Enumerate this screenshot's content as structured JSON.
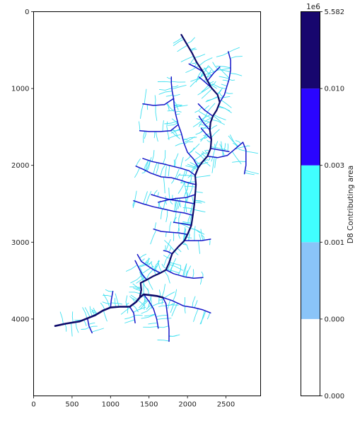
{
  "chart_data": [
    {
      "type": "heatmap",
      "description_of_marks": "flow-accumulation raster of a river network",
      "xlim": [
        0,
        2950
      ],
      "ylim": [
        5000,
        0
      ],
      "x_ticks": [
        0,
        500,
        1000,
        1500,
        2000,
        2500
      ],
      "y_ticks": [
        0,
        1000,
        2000,
        3000,
        4000
      ],
      "x_tick_labels": [
        "0",
        "500",
        "1000",
        "1500",
        "2000",
        "2500"
      ],
      "y_tick_labels": [
        "0",
        "1000",
        "2000",
        "3000",
        "4000"
      ],
      "grid": false,
      "network": {
        "colors": {
          "small": "#3fe0f0",
          "medium": "#1515c8",
          "large": "#0d0a6a"
        },
        "trunk": [
          [
            280,
            4090
          ],
          [
            420,
            4060
          ],
          [
            600,
            4030
          ],
          [
            700,
            3990
          ],
          [
            800,
            3950
          ],
          [
            900,
            3890
          ],
          [
            1000,
            3850
          ],
          [
            1120,
            3840
          ],
          [
            1250,
            3840
          ],
          [
            1330,
            3780
          ],
          [
            1380,
            3720
          ],
          [
            1430,
            3680
          ],
          [
            1520,
            3690
          ],
          [
            1600,
            3700
          ],
          [
            1680,
            3720
          ]
        ],
        "main_stem": [
          [
            1380,
            3720
          ],
          [
            1400,
            3620
          ],
          [
            1390,
            3530
          ],
          [
            1470,
            3490
          ],
          [
            1560,
            3440
          ],
          [
            1650,
            3400
          ],
          [
            1720,
            3360
          ],
          [
            1760,
            3270
          ],
          [
            1800,
            3150
          ],
          [
            1880,
            3060
          ],
          [
            1960,
            2980
          ],
          [
            2000,
            2900
          ],
          [
            2050,
            2780
          ],
          [
            2070,
            2650
          ],
          [
            2090,
            2500
          ],
          [
            2100,
            2380
          ],
          [
            2110,
            2250
          ],
          [
            2100,
            2130
          ],
          [
            2140,
            2030
          ],
          [
            2190,
            1960
          ],
          [
            2260,
            1880
          ],
          [
            2300,
            1780
          ],
          [
            2310,
            1660
          ],
          [
            2290,
            1540
          ],
          [
            2300,
            1440
          ],
          [
            2330,
            1360
          ],
          [
            2380,
            1280
          ],
          [
            2420,
            1180
          ],
          [
            2390,
            1080
          ],
          [
            2310,
            990
          ],
          [
            2260,
            900
          ],
          [
            2200,
            780
          ],
          [
            2120,
            660
          ],
          [
            2060,
            540
          ],
          [
            1990,
            420
          ],
          [
            1920,
            300
          ]
        ],
        "medium_channels": [
          [
            [
              2110,
              2250
            ],
            [
              2020,
              2230
            ],
            [
              1900,
              2190
            ],
            [
              1790,
              2160
            ],
            [
              1660,
              2150
            ],
            [
              1520,
              2100
            ],
            [
              1420,
              2050
            ],
            [
              1330,
              2010
            ]
          ],
          [
            [
              2100,
              2380
            ],
            [
              1980,
              2420
            ],
            [
              1860,
              2430
            ],
            [
              1740,
              2450
            ],
            [
              1620,
              2480
            ]
          ],
          [
            [
              2090,
              2500
            ],
            [
              1940,
              2470
            ],
            [
              1800,
              2450
            ],
            [
              1660,
              2420
            ],
            [
              1530,
              2380
            ]
          ],
          [
            [
              2070,
              2650
            ],
            [
              1960,
              2620
            ],
            [
              1830,
              2600
            ],
            [
              1700,
              2570
            ],
            [
              1560,
              2540
            ],
            [
              1420,
              2500
            ],
            [
              1300,
              2460
            ]
          ],
          [
            [
              2050,
              2780
            ],
            [
              1940,
              2760
            ],
            [
              1820,
              2740
            ]
          ],
          [
            [
              2140,
              2030
            ],
            [
              2080,
              1920
            ],
            [
              2000,
              1830
            ],
            [
              1950,
              1700
            ],
            [
              1920,
              1580
            ],
            [
              1880,
              1470
            ],
            [
              1850,
              1350
            ],
            [
              1830,
              1250
            ],
            [
              1820,
              1130
            ],
            [
              1800,
              1030
            ],
            [
              1790,
              930
            ],
            [
              1790,
              850
            ]
          ],
          [
            [
              1880,
              1470
            ],
            [
              1780,
              1550
            ],
            [
              1650,
              1560
            ],
            [
              1500,
              1560
            ],
            [
              1380,
              1550
            ]
          ],
          [
            [
              1820,
              1130
            ],
            [
              1700,
              1210
            ],
            [
              1560,
              1220
            ],
            [
              1420,
              1200
            ]
          ],
          [
            [
              2260,
              1880
            ],
            [
              2390,
              1900
            ],
            [
              2520,
              1870
            ],
            [
              2650,
              1760
            ],
            [
              2720,
              1700
            ],
            [
              2760,
              1800
            ],
            [
              2760,
              2000
            ],
            [
              2740,
              2110
            ]
          ],
          [
            [
              2300,
              1780
            ],
            [
              2420,
              1800
            ],
            [
              2540,
              1820
            ]
          ],
          [
            [
              1960,
              2980
            ],
            [
              2060,
              2980
            ],
            [
              2180,
              2980
            ],
            [
              2300,
              2960
            ]
          ],
          [
            [
              1800,
              3150
            ],
            [
              1740,
              3120
            ],
            [
              1690,
              3110
            ]
          ],
          [
            [
              1650,
              3400
            ],
            [
              1560,
              3360
            ],
            [
              1470,
              3300
            ],
            [
              1400,
              3250
            ],
            [
              1350,
              3160
            ]
          ],
          [
            [
              1470,
              3490
            ],
            [
              1410,
              3420
            ],
            [
              1360,
              3320
            ],
            [
              1320,
              3240
            ]
          ],
          [
            [
              1720,
              3360
            ],
            [
              1820,
              3410
            ],
            [
              1960,
              3450
            ],
            [
              2080,
              3470
            ],
            [
              2200,
              3460
            ]
          ],
          [
            [
              1680,
              3720
            ],
            [
              1720,
              3800
            ],
            [
              1740,
              3950
            ],
            [
              1760,
              4130
            ],
            [
              1760,
              4290
            ]
          ],
          [
            [
              1680,
              3720
            ],
            [
              1800,
              3760
            ],
            [
              1950,
              3830
            ],
            [
              2080,
              3850
            ],
            [
              2200,
              3880
            ],
            [
              2300,
              3920
            ]
          ],
          [
            [
              1430,
              3680
            ],
            [
              1500,
              3770
            ],
            [
              1560,
              3870
            ],
            [
              1600,
              4000
            ],
            [
              1620,
              4120
            ]
          ],
          [
            [
              1250,
              3840
            ],
            [
              1300,
              3920
            ],
            [
              1320,
              4050
            ]
          ],
          [
            [
              2310,
              1660
            ],
            [
              2240,
              1590
            ],
            [
              2180,
              1520
            ]
          ],
          [
            [
              2290,
              1540
            ],
            [
              2210,
              1450
            ],
            [
              2150,
              1360
            ]
          ],
          [
            [
              2330,
              1360
            ],
            [
              2220,
              1280
            ],
            [
              2140,
              1200
            ]
          ],
          [
            [
              2420,
              1180
            ],
            [
              2480,
              1080
            ],
            [
              2510,
              980
            ],
            [
              2540,
              880
            ],
            [
              2560,
              760
            ],
            [
              2560,
              630
            ],
            [
              2530,
              520
            ]
          ],
          [
            [
              2310,
              990
            ],
            [
              2220,
              910
            ],
            [
              2150,
              850
            ]
          ],
          [
            [
              2260,
              900
            ],
            [
              2340,
              800
            ],
            [
              2420,
              720
            ]
          ],
          [
            [
              2200,
              780
            ],
            [
              2100,
              720
            ],
            [
              2020,
              680
            ]
          ],
          [
            [
              2100,
              2130
            ],
            [
              2020,
              2070
            ],
            [
              1920,
              2040
            ],
            [
              1800,
              2010
            ],
            [
              1680,
              1980
            ],
            [
              1540,
              1950
            ],
            [
              1420,
              1910
            ]
          ],
          [
            [
              1000,
              3850
            ],
            [
              1010,
              3750
            ],
            [
              1030,
              3640
            ]
          ],
          [
            [
              700,
              3990
            ],
            [
              720,
              4090
            ],
            [
              760,
              4180
            ]
          ],
          [
            [
              2000,
              2900
            ],
            [
              1900,
              2880
            ],
            [
              1780,
              2870
            ],
            [
              1660,
              2860
            ],
            [
              1560,
              2830
            ]
          ]
        ]
      }
    },
    {
      "type": "colorbar",
      "label": "D8 Contributing area",
      "offset_label": "1e6",
      "tick_labels": [
        "0.000",
        "0.000",
        "0.001",
        "0.003",
        "0.010",
        "5.582"
      ],
      "bins": [
        {
          "color": "#ffffff"
        },
        {
          "color": "#8ac4f8"
        },
        {
          "color": "#40ffff"
        },
        {
          "color": "#2a05ff"
        },
        {
          "color": "#17066e"
        }
      ]
    }
  ]
}
